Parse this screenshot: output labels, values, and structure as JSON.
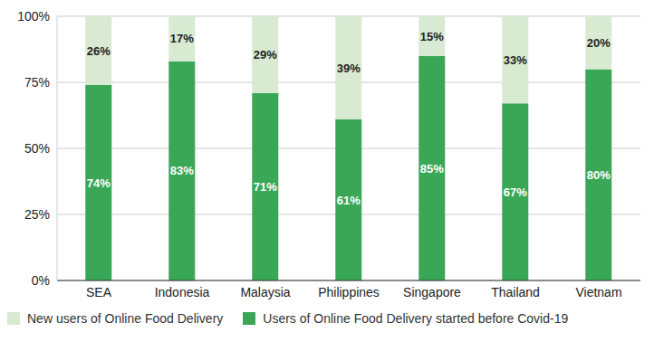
{
  "chart_data": {
    "type": "bar",
    "stacked": true,
    "data_labels": true,
    "grid": true,
    "legend": "bottom",
    "categories": [
      "SEA",
      "Indonesia",
      "Malaysia",
      "Philippines",
      "Singapore",
      "Thailand",
      "Vietnam"
    ],
    "series": [
      {
        "name": "Users of Online Food Delivery started before Covid-19",
        "color": "#3aa757",
        "values": [
          74,
          83,
          71,
          61,
          85,
          67,
          80
        ],
        "value_labels": [
          "74%",
          "83%",
          "71%",
          "61%",
          "85%",
          "67%",
          "80%"
        ]
      },
      {
        "name": "New users of Online Food Delivery",
        "color": "#d9ead3",
        "values": [
          26,
          17,
          29,
          39,
          15,
          33,
          20
        ],
        "value_labels": [
          "26%",
          "17%",
          "29%",
          "39%",
          "15%",
          "33%",
          "20%"
        ]
      }
    ],
    "ylim": [
      0,
      100
    ],
    "yticks": [
      {
        "value": 0,
        "label": "0%"
      },
      {
        "value": 25,
        "label": "25%"
      },
      {
        "value": 50,
        "label": "50%"
      },
      {
        "value": 75,
        "label": "75%"
      },
      {
        "value": 100,
        "label": "100%"
      }
    ]
  }
}
